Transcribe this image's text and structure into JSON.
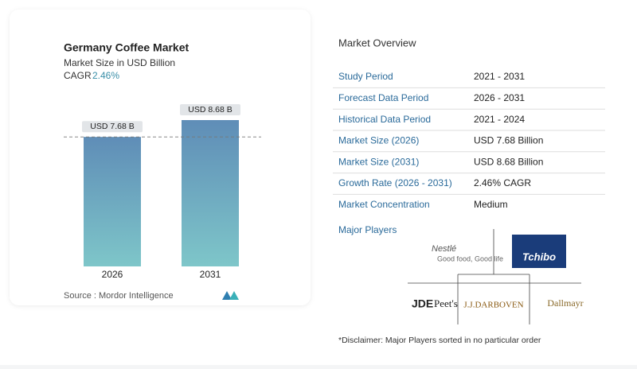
{
  "chart_data": {
    "type": "bar",
    "title": "Germany Coffee Market",
    "subtitle": "Market Size in USD Billion",
    "cagr_label": "CAGR",
    "cagr": "2.46%",
    "categories": [
      "2026",
      "2031"
    ],
    "values": [
      7.68,
      8.68
    ],
    "value_labels": [
      "USD 7.68 B",
      "USD 8.68 B"
    ],
    "source": "Source :  Mordor Intelligence"
  },
  "overview": {
    "title": "Market Overview",
    "rows": [
      [
        "Study Period",
        "2021 - 2031"
      ],
      [
        "Forecast Data Period",
        "2026 - 2031"
      ],
      [
        "Historical Data Period",
        "2021 - 2024"
      ],
      [
        "Market Size (2026)",
        "USD 7.68 Billion"
      ],
      [
        "Market Size (2031)",
        "USD 8.68 Billion"
      ],
      [
        "Growth Rate (2026 - 2031)",
        "2.46% CAGR"
      ],
      [
        "Market Concentration",
        "Medium"
      ]
    ],
    "players_label": "Major Players",
    "players": [
      "Nestlé",
      "Good food, Good life",
      "Tchibo",
      "JDE",
      "Peet's",
      "J.J.DARBOVEN",
      "Dallmayr"
    ],
    "disclaimer": "*Disclaimer: Major Players sorted in no particular order"
  }
}
